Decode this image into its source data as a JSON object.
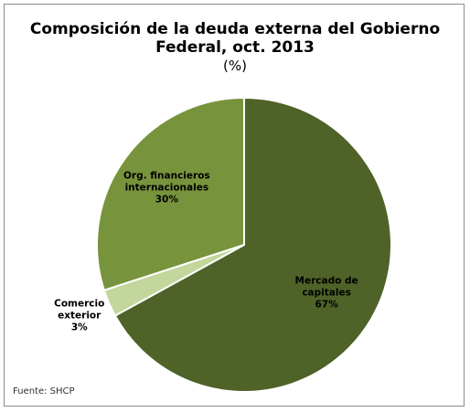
{
  "chart_data": {
    "type": "pie",
    "title": "Composición de la deuda externa del Gobierno Federal, oct. 2013",
    "subtitle": "(%)",
    "source": "Fuente: SHCP",
    "categories": [
      "Mercado de capitales",
      "Comercio exterior",
      "Org. financieros internacionales"
    ],
    "values": [
      67,
      3,
      30
    ],
    "value_labels": [
      "67%",
      "3%",
      "30%"
    ],
    "colors": [
      "#4f6228",
      "#c3d69b",
      "#77933c"
    ]
  }
}
